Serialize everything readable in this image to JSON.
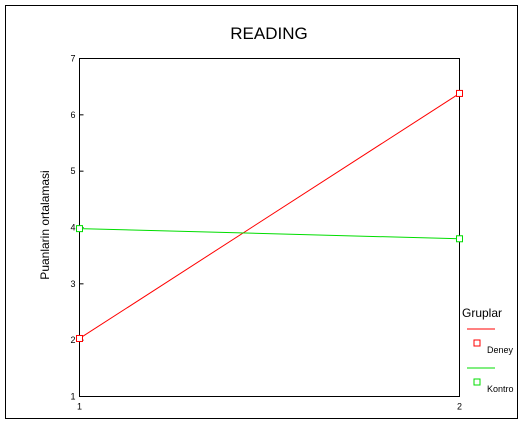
{
  "chart_data": {
    "type": "line",
    "title": "READING",
    "xlabel": "",
    "ylabel": "Puanlarin ortalamasi",
    "x": [
      1,
      2
    ],
    "x_ticks": [
      "1",
      "2"
    ],
    "y_ticks": [
      "1",
      "2",
      "3",
      "4",
      "5",
      "6",
      "7"
    ],
    "ylim": [
      1,
      7
    ],
    "grid": false,
    "legend": {
      "title": "Gruplar",
      "placement": "bottom-right"
    },
    "series": [
      {
        "name": "Deney",
        "values": [
          2.03,
          6.38
        ],
        "color": "#ff0000",
        "marker": "square"
      },
      {
        "name": "Kontro",
        "values": [
          3.98,
          3.8
        ],
        "color": "#00dd00",
        "marker": "square"
      }
    ]
  }
}
